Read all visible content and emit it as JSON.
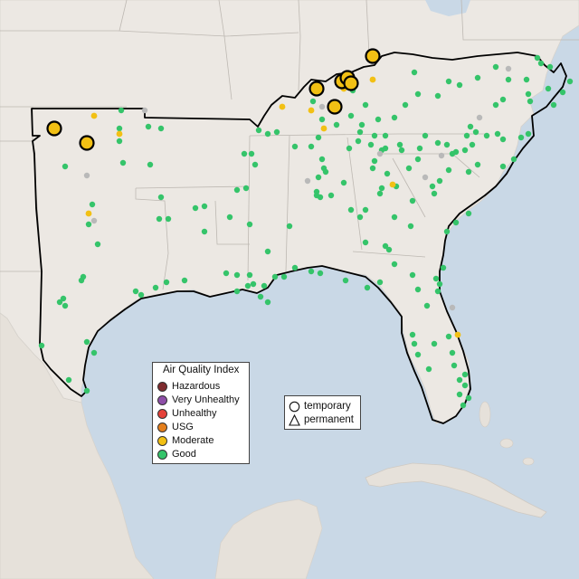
{
  "legend": {
    "title": "Air Quality Index",
    "items": [
      {
        "label": "Hazardous",
        "color": "#7e2b2e"
      },
      {
        "label": "Very Unhealthy",
        "color": "#8e4fa8"
      },
      {
        "label": "Unhealthy",
        "color": "#e5423a"
      },
      {
        "label": "USG",
        "color": "#e57f1c"
      },
      {
        "label": "Moderate",
        "color": "#f2c014"
      },
      {
        "label": "Good",
        "color": "#35c46a"
      }
    ]
  },
  "shape_legend": {
    "items": [
      {
        "label": "temporary",
        "shape": "circle-icon"
      },
      {
        "label": "permanent",
        "shape": "triangle-icon"
      }
    ]
  },
  "colors": {
    "water": "#c9d8e6",
    "land": "#ece8e3",
    "good": "#35c46a",
    "moderate": "#f2c014",
    "no_data": "#b9b9b9",
    "region_outline": "#000000"
  },
  "monitors": {
    "moderate_large": 9,
    "moderate_small": 14,
    "good_visible": "hundreds"
  }
}
